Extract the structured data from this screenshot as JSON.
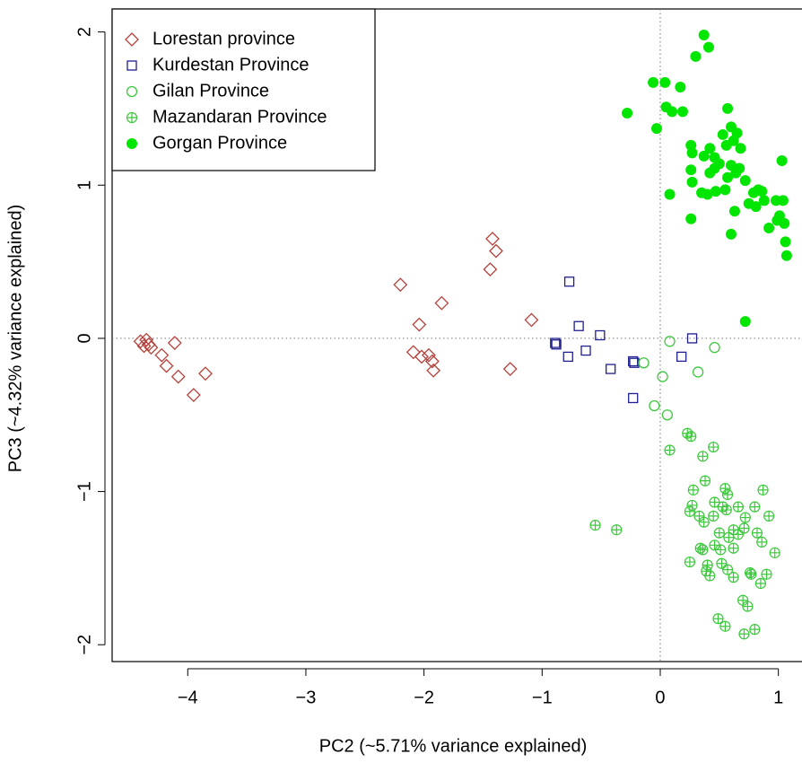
{
  "chart_data": {
    "type": "scatter",
    "x_label": "PC2 (~5.71% variance explained)",
    "y_label": "PC3 (~4.32% variance explained)",
    "xlim": [
      -4.64,
      1.2
    ],
    "ylim": [
      -2.11,
      2.15
    ],
    "xticks": [
      {
        "value": -4,
        "label": "−4"
      },
      {
        "value": -3,
        "label": "−3"
      },
      {
        "value": -2,
        "label": "−2"
      },
      {
        "value": -1,
        "label": "−1"
      },
      0,
      1
    ],
    "yticks": [
      {
        "value": -2,
        "label": "−2"
      },
      {
        "value": -1,
        "label": "−1"
      },
      0,
      1,
      2
    ],
    "hlines": [
      0
    ],
    "vlines": [
      0
    ],
    "legend": "top-left",
    "series": [
      {
        "name": "Lorestan province",
        "color": "#b5403a",
        "marker": "diamond",
        "x": [
          -4.4,
          -4.37,
          -4.35,
          -4.33,
          -4.31,
          -4.22,
          -4.18,
          -4.11,
          -4.08,
          -3.95,
          -3.85,
          -2.2,
          -2.04,
          -2.09,
          -2.02,
          -1.96,
          -1.93,
          -1.92,
          -1.85,
          -1.42,
          -1.39,
          -1.44,
          -1.09,
          -1.27
        ],
        "values": [
          -0.02,
          -0.05,
          -0.01,
          -0.04,
          -0.06,
          -0.11,
          -0.18,
          -0.03,
          -0.25,
          -0.37,
          -0.23,
          0.35,
          0.09,
          -0.09,
          -0.12,
          -0.11,
          -0.15,
          -0.21,
          0.23,
          0.65,
          0.57,
          0.45,
          0.12,
          -0.2
        ]
      },
      {
        "name": "Kurdestan Province",
        "color": "#1f1f8f",
        "marker": "square",
        "x": [
          -0.77,
          -0.69,
          -0.89,
          -0.88,
          -0.78,
          -0.63,
          -0.51,
          -0.42,
          -0.23,
          -0.23,
          -0.22,
          0.18,
          0.27
        ],
        "values": [
          0.37,
          0.08,
          -0.03,
          -0.04,
          -0.12,
          -0.08,
          0.02,
          -0.2,
          -0.15,
          -0.39,
          -0.16,
          -0.12,
          0.0
        ]
      },
      {
        "name": "Gilan Province",
        "color": "#3cc83c",
        "marker": "circle",
        "x": [
          -0.14,
          0.08,
          0.02,
          -0.05,
          0.06,
          0.32,
          0.46
        ],
        "values": [
          -0.16,
          -0.02,
          -0.25,
          -0.44,
          -0.5,
          -0.22,
          -0.06
        ]
      },
      {
        "name": "Mazandaran Province",
        "color": "#3cc83c",
        "marker": "circle-plus",
        "x": [
          0.08,
          0.23,
          0.26,
          0.36,
          0.45,
          0.28,
          0.27,
          0.25,
          0.38,
          0.46,
          0.55,
          0.57,
          0.53,
          0.56,
          0.66,
          0.72,
          0.87,
          0.8,
          0.92,
          0.33,
          0.37,
          0.45,
          0.5,
          0.62,
          0.58,
          0.66,
          0.71,
          0.82,
          0.86,
          0.97,
          0.34,
          0.36,
          0.46,
          0.51,
          0.62,
          0.4,
          0.39,
          0.42,
          0.52,
          0.57,
          0.62,
          0.76,
          0.77,
          0.9,
          0.85,
          0.25,
          0.7,
          0.74,
          0.49,
          0.55,
          0.8,
          0.71,
          -0.55,
          -0.37
        ],
        "values": [
          -0.73,
          -0.62,
          -0.64,
          -0.77,
          -0.71,
          -0.99,
          -1.09,
          -1.13,
          -0.93,
          -1.07,
          -0.98,
          -1.02,
          -1.1,
          -1.12,
          -1.1,
          -1.17,
          -0.99,
          -1.1,
          -1.16,
          -1.16,
          -1.2,
          -1.16,
          -1.27,
          -1.25,
          -1.3,
          -1.28,
          -1.24,
          -1.27,
          -1.33,
          -1.4,
          -1.37,
          -1.38,
          -1.35,
          -1.38,
          -1.37,
          -1.48,
          -1.52,
          -1.55,
          -1.47,
          -1.51,
          -1.56,
          -1.53,
          -1.54,
          -1.54,
          -1.6,
          -1.46,
          -1.71,
          -1.75,
          -1.83,
          -1.88,
          -1.9,
          -1.93,
          -1.22,
          -1.25
        ]
      },
      {
        "name": "Gorgan Province",
        "color": "#00e600",
        "marker": "filled-circle",
        "x": [
          -0.28,
          -0.06,
          0.04,
          -0.03,
          0.05,
          0.1,
          0.19,
          0.17,
          0.26,
          0.27,
          0.26,
          0.27,
          0.08,
          0.26,
          0.3,
          0.37,
          0.41,
          0.37,
          0.42,
          0.42,
          0.46,
          0.35,
          0.4,
          0.47,
          0.53,
          0.56,
          0.57,
          0.6,
          0.62,
          0.65,
          0.68,
          0.6,
          0.64,
          0.67,
          0.72,
          0.57,
          0.55,
          0.63,
          0.6,
          0.75,
          0.79,
          0.83,
          0.86,
          0.88,
          0.81,
          0.92,
          0.99,
          1.01,
          1.04,
          1.03,
          1.06,
          1.07,
          0.98,
          1.05,
          0.72,
          0.5,
          0.46
        ],
        "values": [
          1.47,
          1.67,
          1.67,
          1.37,
          1.51,
          1.48,
          1.48,
          1.64,
          1.26,
          1.21,
          1.1,
          1.02,
          0.94,
          0.78,
          1.84,
          1.98,
          1.9,
          1.19,
          1.24,
          1.08,
          1.11,
          0.95,
          0.94,
          0.96,
          1.33,
          1.26,
          1.5,
          1.38,
          1.29,
          1.34,
          1.24,
          1.13,
          1.08,
          1.11,
          1.03,
          1.05,
          0.97,
          0.83,
          0.68,
          0.88,
          0.95,
          0.97,
          0.96,
          0.9,
          0.86,
          0.72,
          0.77,
          0.8,
          0.9,
          1.16,
          0.63,
          0.54,
          0.9,
          0.75,
          0.11,
          1.14,
          1.18
        ]
      }
    ]
  }
}
